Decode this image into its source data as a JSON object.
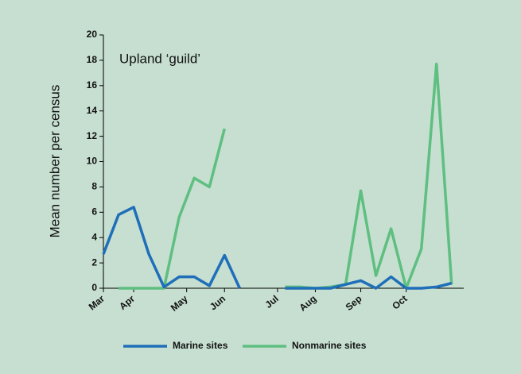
{
  "chart_data": {
    "type": "line",
    "ylabel": "Mean number per census",
    "annotation": "Upland ‘guild’",
    "x": [
      0,
      1,
      2,
      3,
      4,
      5,
      6,
      7,
      8,
      9,
      10,
      11,
      12,
      13,
      14,
      15,
      16,
      17,
      18,
      19,
      20,
      21,
      22,
      23
    ],
    "xlim": [
      0,
      23.8
    ],
    "xticks": [
      {
        "value": 0,
        "label": "Mar"
      },
      {
        "value": 2,
        "label": "Apr"
      },
      {
        "value": 5.5,
        "label": "May"
      },
      {
        "value": 8,
        "label": "Jun"
      },
      {
        "value": 11.5,
        "label": "Jul"
      },
      {
        "value": 14,
        "label": "Aug"
      },
      {
        "value": 17,
        "label": "Sep"
      },
      {
        "value": 20,
        "label": "Oct"
      }
    ],
    "ylim": [
      0,
      20
    ],
    "yticks": [
      0,
      2,
      4,
      6,
      8,
      10,
      12,
      14,
      16,
      18,
      20
    ],
    "series": [
      {
        "name": "Marine sites",
        "color": "#1f6fb8",
        "values": [
          2.7,
          5.8,
          6.4,
          2.7,
          0.1,
          0.9,
          0.9,
          0.2,
          2.6,
          0,
          null,
          null,
          0,
          0,
          0,
          0,
          0.3,
          0.6,
          0,
          0.9,
          0,
          0,
          0.1,
          0.4
        ]
      },
      {
        "name": "Nonmarine sites",
        "color": "#5fbf80",
        "values": [
          null,
          0,
          0,
          0,
          0,
          5.6,
          8.7,
          8.0,
          12.6,
          null,
          null,
          null,
          0.1,
          0.1,
          0,
          0.1,
          0.3,
          7.7,
          1.0,
          4.7,
          0,
          3.1,
          17.7,
          0.3
        ]
      }
    ]
  }
}
